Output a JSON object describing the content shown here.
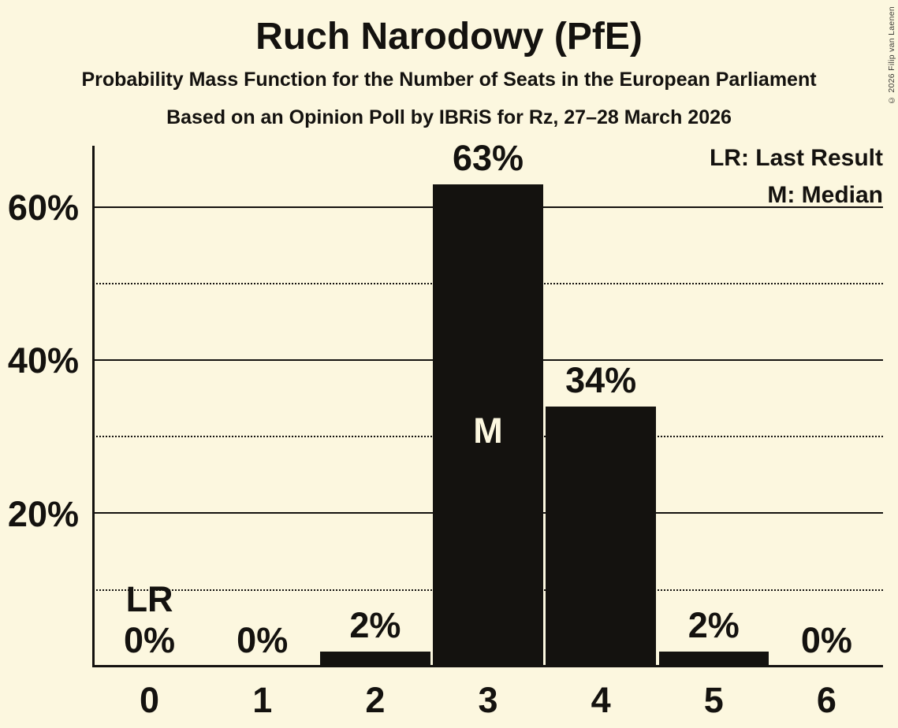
{
  "header": {
    "title": "Ruch Narodowy (PfE)",
    "subtitle": "Probability Mass Function for the Number of Seats in the European Parliament",
    "poll_line": "Based on an Opinion Poll by IBRiS for Rz, 27–28 March 2026",
    "copyright": "© 2026 Filip van Laenen"
  },
  "legend": {
    "last_result": "LR: Last Result",
    "median": "M: Median"
  },
  "colors": {
    "background": "#FCF7DF",
    "ink": "#14120F",
    "bar": "#14120F",
    "median_marker_text": "#FCF7DF",
    "copyright_text": "#3D3B36"
  },
  "chart_data": {
    "type": "bar",
    "title": "Ruch Narodowy (PfE)",
    "subtitle": "Probability Mass Function for the Number of Seats in the European Parliament",
    "source_line": "Based on an Opinion Poll by IBRiS for Rz, 27–28 March 2026",
    "categories": [
      "0",
      "1",
      "2",
      "3",
      "4",
      "5",
      "6"
    ],
    "values": [
      0,
      0,
      2,
      63,
      34,
      2,
      0
    ],
    "value_labels": [
      "0%",
      "0%",
      "2%",
      "63%",
      "34%",
      "2%",
      "0%"
    ],
    "yticks": [
      {
        "pct": 20,
        "label": "20%"
      },
      {
        "pct": 40,
        "label": "40%"
      },
      {
        "pct": 60,
        "label": "60%"
      }
    ],
    "gridlines": {
      "solid_pcts": [
        20,
        40,
        60
      ],
      "dotted_pcts": [
        10,
        30,
        50
      ]
    },
    "ylim": [
      0,
      68
    ],
    "grid": "horizontal",
    "median_category": "3",
    "median_marker": "M",
    "last_result_category": "0",
    "last_result_marker": "LR",
    "legend_entries": [
      "LR: Last Result",
      "M: Median"
    ],
    "legend_position": "top-right"
  }
}
